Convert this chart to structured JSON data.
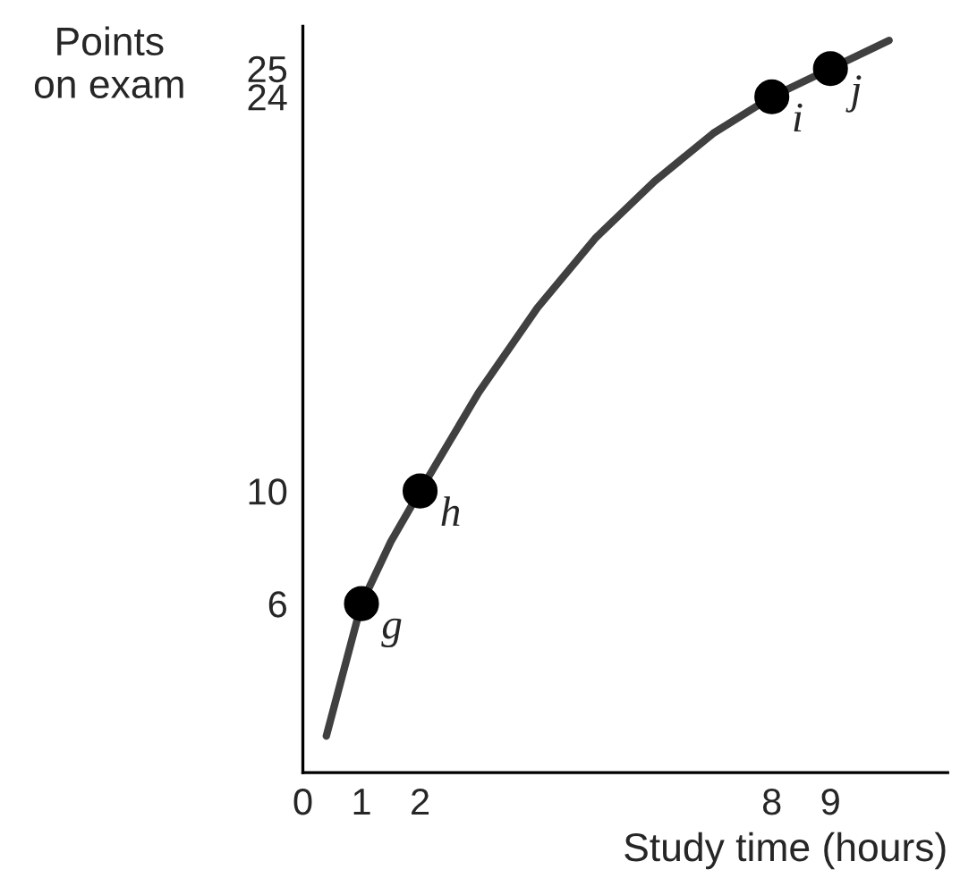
{
  "chart_data": {
    "type": "scatter",
    "xlabel": "Study time (hours)",
    "ylabel": "Points\non exam",
    "xlim": [
      0,
      11
    ],
    "ylim": [
      0,
      26.5
    ],
    "xticks": [
      0,
      1,
      2,
      8,
      9
    ],
    "yticks": [
      6,
      10,
      24,
      25
    ],
    "grid": false,
    "legend": false,
    "series": [
      {
        "type": "line",
        "color": "#404040",
        "line_style": "solid",
        "x": [
          0.4,
          1,
          1.5,
          2,
          3,
          4,
          5,
          6,
          7,
          8,
          9,
          10
        ],
        "values": [
          1.3,
          6,
          8.2,
          10,
          13.5,
          16.5,
          19,
          21,
          22.7,
          24,
          25,
          26
        ]
      },
      {
        "color": "#000000",
        "marker": "circle",
        "x": [
          1,
          2,
          8,
          9
        ],
        "values": [
          6,
          10,
          24,
          25
        ]
      }
    ],
    "annotations": [
      {
        "text": "g",
        "x": 1,
        "y": 6
      },
      {
        "text": "h",
        "x": 2,
        "y": 10
      },
      {
        "text": "i",
        "x": 8,
        "y": 24
      },
      {
        "text": "j",
        "x": 9,
        "y": 25
      }
    ]
  }
}
